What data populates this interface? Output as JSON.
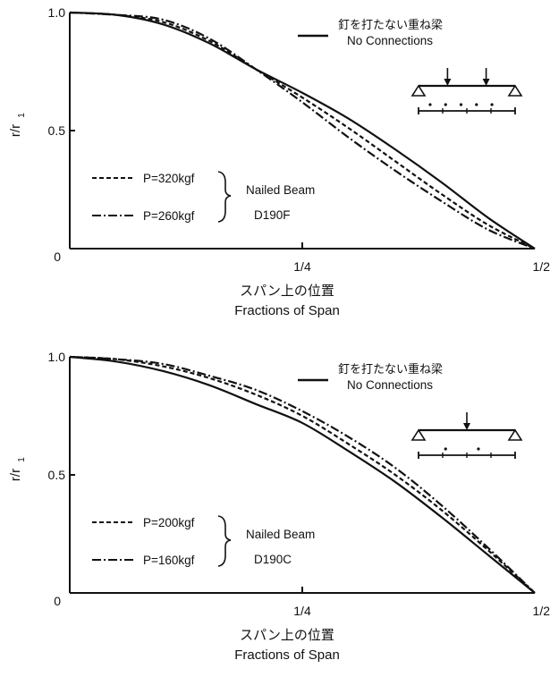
{
  "chart_data": [
    {
      "type": "line",
      "ylabel_main": "r/r",
      "ylabel_sub": "1",
      "xlabel_jp": "スパン上の位置",
      "xlabel_en": "Fractions of Span",
      "x_ticks": [
        {
          "value": 0,
          "label": "0"
        },
        {
          "value": 0.25,
          "label": "1/4"
        },
        {
          "value": 0.5,
          "label": "1/2"
        }
      ],
      "y_ticks": [
        {
          "value": 0.5,
          "label": "0.5"
        },
        {
          "value": 1.0,
          "label": "1.0"
        }
      ],
      "xlim": [
        0,
        0.5
      ],
      "ylim": [
        0,
        1.0
      ],
      "series": [
        {
          "name": "釘を打たない重ね梁 No Connections",
          "style": "solid",
          "x": [
            0,
            0.05,
            0.1,
            0.15,
            0.2,
            0.25,
            0.3,
            0.35,
            0.4,
            0.45,
            0.5
          ],
          "y": [
            1.0,
            0.99,
            0.95,
            0.87,
            0.76,
            0.66,
            0.55,
            0.42,
            0.28,
            0.13,
            0.0
          ]
        },
        {
          "name": "P=320kgf",
          "style": "dashed",
          "x": [
            0,
            0.05,
            0.1,
            0.15,
            0.2,
            0.25,
            0.3,
            0.35,
            0.4,
            0.45,
            0.5
          ],
          "y": [
            1.0,
            0.99,
            0.96,
            0.88,
            0.76,
            0.64,
            0.51,
            0.37,
            0.23,
            0.1,
            0.0
          ]
        },
        {
          "name": "P=260kgf",
          "style": "dashdot",
          "x": [
            0,
            0.05,
            0.1,
            0.15,
            0.2,
            0.25,
            0.3,
            0.35,
            0.4,
            0.45,
            0.5
          ],
          "y": [
            1.0,
            0.99,
            0.97,
            0.89,
            0.76,
            0.62,
            0.47,
            0.33,
            0.2,
            0.08,
            0.0
          ]
        }
      ],
      "legend_topright": {
        "jp": "釘を打たない重ね梁",
        "en": "No Connections"
      },
      "legend_bottomleft": [
        {
          "label": "P=320kgf",
          "style": "dashed"
        },
        {
          "label": "P=260kgf",
          "style": "dashdot"
        }
      ],
      "bracket_text": [
        "Nailed Beam",
        "D190F"
      ],
      "loads": [
        0.3,
        0.7
      ],
      "nail_dots": [
        0.12,
        0.28,
        0.44,
        0.6,
        0.76
      ]
    },
    {
      "type": "line",
      "ylabel_main": "r/r",
      "ylabel_sub": "1",
      "xlabel_jp": "スパン上の位置",
      "xlabel_en": "Fractions of Span",
      "x_ticks": [
        {
          "value": 0,
          "label": "0"
        },
        {
          "value": 0.25,
          "label": "1/4"
        },
        {
          "value": 0.5,
          "label": "1/2"
        }
      ],
      "y_ticks": [
        {
          "value": 0.5,
          "label": "0.5"
        },
        {
          "value": 1.0,
          "label": "1.0"
        }
      ],
      "xlim": [
        0,
        0.5
      ],
      "ylim": [
        0,
        1.0
      ],
      "series": [
        {
          "name": "釘を打たない重ね梁 No Connections",
          "style": "solid",
          "x": [
            0,
            0.05,
            0.1,
            0.15,
            0.2,
            0.25,
            0.3,
            0.35,
            0.4,
            0.45,
            0.5
          ],
          "y": [
            1.0,
            0.98,
            0.94,
            0.88,
            0.8,
            0.72,
            0.6,
            0.47,
            0.32,
            0.16,
            0.0
          ]
        },
        {
          "name": "P=200kgf",
          "style": "dashed",
          "x": [
            0,
            0.05,
            0.1,
            0.15,
            0.2,
            0.25,
            0.3,
            0.35,
            0.4,
            0.45,
            0.5
          ],
          "y": [
            1.0,
            0.99,
            0.96,
            0.91,
            0.84,
            0.75,
            0.63,
            0.5,
            0.35,
            0.18,
            0.0
          ]
        },
        {
          "name": "P=160kgf",
          "style": "dashdot",
          "x": [
            0,
            0.05,
            0.1,
            0.15,
            0.2,
            0.25,
            0.3,
            0.35,
            0.4,
            0.45,
            0.5
          ],
          "y": [
            1.0,
            0.99,
            0.97,
            0.92,
            0.86,
            0.77,
            0.66,
            0.53,
            0.37,
            0.19,
            0.0
          ]
        }
      ],
      "legend_topright": {
        "jp": "釘を打たない重ね梁",
        "en": "No Connections"
      },
      "legend_bottomleft": [
        {
          "label": "P=200kgf",
          "style": "dashed"
        },
        {
          "label": "P=160kgf",
          "style": "dashdot"
        }
      ],
      "bracket_text": [
        "Nailed Beam",
        "D190C"
      ],
      "loads": [
        0.5
      ],
      "nail_dots": [
        0.28,
        0.62
      ]
    }
  ]
}
